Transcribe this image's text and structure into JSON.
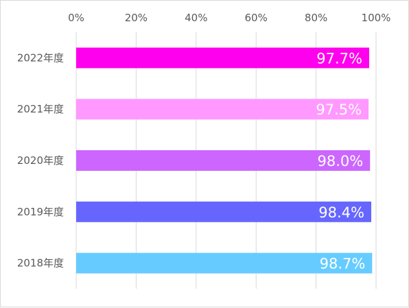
{
  "chart_data": {
    "type": "bar",
    "orientation": "horizontal",
    "categories": [
      "2022年度",
      "2021年度",
      "2020年度",
      "2019年度",
      "2018年度"
    ],
    "values": [
      97.7,
      97.5,
      98.0,
      98.4,
      98.7
    ],
    "data_labels": [
      "97.7%",
      "97.5%",
      "98.0%",
      "98.4%",
      "98.7%"
    ],
    "colors": [
      "#ff00ee",
      "#ff99ff",
      "#cc66ff",
      "#6666ff",
      "#66ccff"
    ],
    "x_ticks": [
      "0%",
      "20%",
      "40%",
      "60%",
      "80%",
      "100%"
    ],
    "xlim": [
      0,
      100
    ],
    "x_axis_position": "top",
    "grid": true,
    "legend": "none",
    "title": "",
    "xlabel": "",
    "ylabel": ""
  }
}
